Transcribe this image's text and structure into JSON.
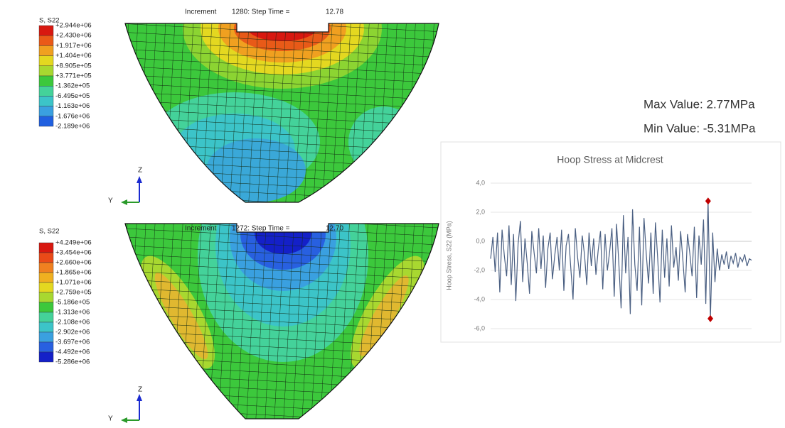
{
  "plots": [
    {
      "legend_title": "S, S22",
      "legend_labels": [
        "+2.944e+06",
        "+2.430e+06",
        "+1.917e+06",
        "+1.404e+06",
        "+8.905e+05",
        "+3.771e+05",
        "-1.362e+05",
        "-6.495e+05",
        "-1.163e+06",
        "-1.676e+06",
        "-2.189e+06"
      ],
      "legend_colors": [
        "#d81810",
        "#ea5a18",
        "#f0a020",
        "#e4d820",
        "#a8d830",
        "#3cc83c",
        "#44d29a",
        "#3cc4c8",
        "#3aa0e0",
        "#2060e0"
      ],
      "increment_label": "Increment",
      "increment": "1280: Step Time =",
      "step_time": "12.78",
      "axis_z": "Z",
      "axis_y": "Y"
    },
    {
      "legend_title": "S, S22",
      "legend_labels": [
        "+4.249e+06",
        "+3.454e+06",
        "+2.660e+06",
        "+1.865e+06",
        "+1.071e+06",
        "+2.759e+05",
        "-5.186e+05",
        "-1.313e+06",
        "-2.108e+06",
        "-2.902e+06",
        "-3.697e+06",
        "-4.492e+06",
        "-5.286e+06"
      ],
      "legend_colors": [
        "#d81810",
        "#ea4a18",
        "#f08020",
        "#f0b020",
        "#e4d820",
        "#a8d830",
        "#3cc83c",
        "#44d29a",
        "#3cc4c8",
        "#3aa0e0",
        "#2860e0",
        "#1420c8"
      ],
      "increment_label": "Increment",
      "increment": "1272: Step Time =",
      "step_time": "12.70",
      "axis_z": "Z",
      "axis_y": "Y"
    }
  ],
  "chart_data": {
    "type": "line",
    "title": "Hoop Stress at Midcrest",
    "ylabel": "Hoop Stress, S22 (MPa)",
    "annotations": [
      "Max Value: 2.77MPa",
      "Min Value: -5.31MPa"
    ],
    "ylim": [
      -6,
      4
    ],
    "yticks": [
      {
        "value": 4,
        "label": "4,0"
      },
      {
        "value": 2,
        "label": "2,0"
      },
      {
        "value": 0,
        "label": "0,0"
      },
      {
        "value": -2,
        "label": "-2,0"
      },
      {
        "value": -4,
        "label": "-4,0"
      },
      {
        "value": -6,
        "label": "-6,0"
      }
    ],
    "grid": true,
    "extreme_markers": {
      "color": "#c00000"
    },
    "series": [
      {
        "color": "#4a5f82",
        "values": [
          -1.2,
          0.3,
          -2.1,
          0.6,
          -3.5,
          0.8,
          -1.0,
          -2.4,
          1.1,
          -3.0,
          0.5,
          -4.1,
          -0.2,
          1.4,
          -2.8,
          0.2,
          -1.5,
          -3.6,
          0.7,
          -0.8,
          -2.2,
          0.9,
          -1.9,
          0.4,
          -3.2,
          -0.5,
          0.6,
          -2.6,
          -1.0,
          0.3,
          -2.0,
          0.8,
          -3.4,
          -0.3,
          0.5,
          -1.8,
          -4.0,
          0.9,
          -1.1,
          -2.5,
          0.4,
          -0.9,
          -3.0,
          0.6,
          -1.7,
          0.2,
          -2.3,
          -0.6,
          0.7,
          -3.3,
          0.5,
          -2.0,
          -0.7,
          0.9,
          -3.8,
          1.2,
          -1.5,
          -4.6,
          1.8,
          -2.2,
          0.3,
          -5.0,
          2.2,
          -1.6,
          -3.4,
          1.0,
          -4.4,
          1.6,
          -0.9,
          -2.9,
          0.6,
          -3.6,
          1.3,
          -1.2,
          -4.2,
          0.8,
          -2.5,
          0.2,
          -3.1,
          1.1,
          -1.8,
          -0.4,
          -2.7,
          0.7,
          -1.3,
          -3.5,
          0.5,
          -0.8,
          -2.4,
          1.0,
          -3.9,
          0.4,
          -1.6,
          1.5,
          -4.3,
          2.77,
          -5.31,
          0.6,
          -2.8,
          -0.5,
          -2.0,
          -0.9,
          -1.6,
          -0.7,
          -1.9,
          -1.0,
          -1.5,
          -0.8,
          -1.8,
          -1.1,
          -1.4,
          -0.9,
          -1.7,
          -1.2,
          -1.3
        ]
      }
    ]
  }
}
